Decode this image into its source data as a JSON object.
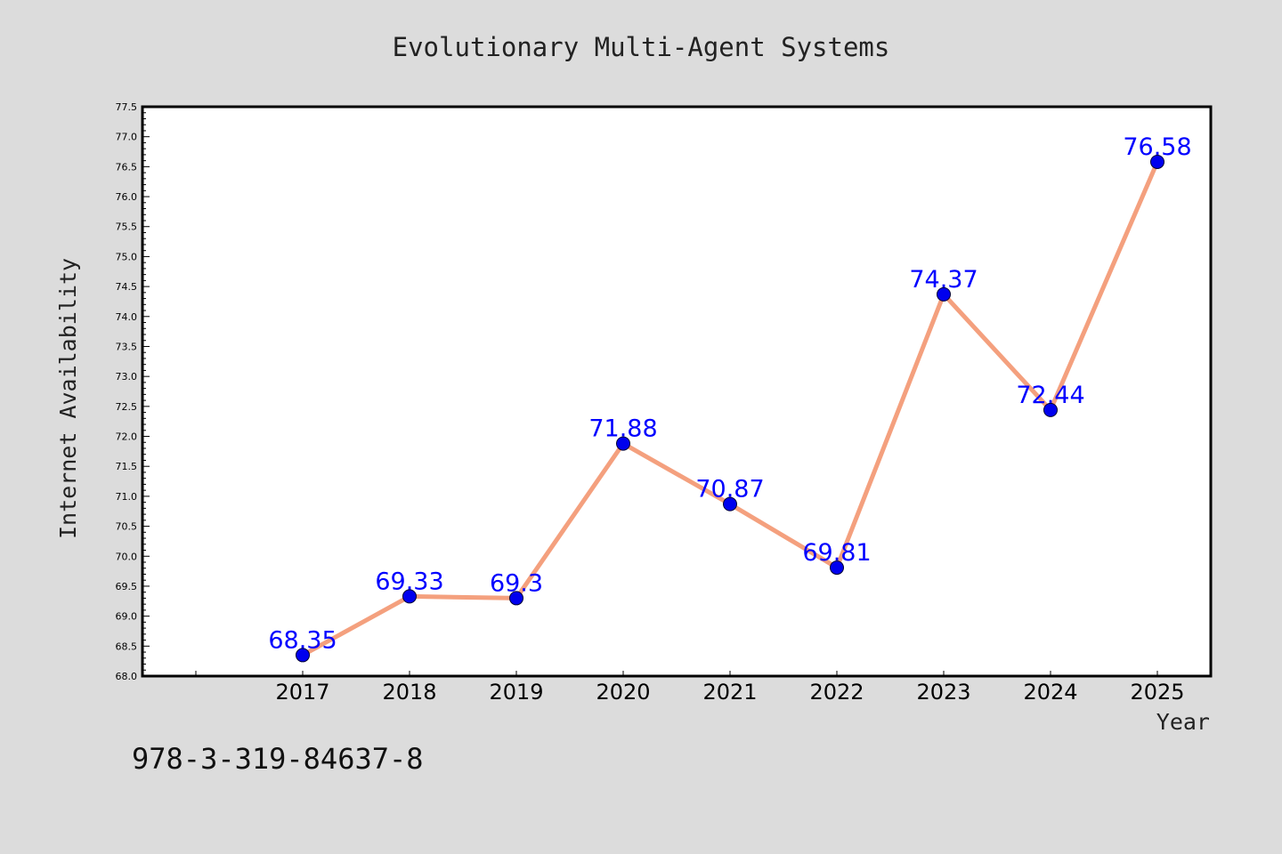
{
  "chart_data": {
    "type": "line",
    "title": "Evolutionary Multi-Agent Systems",
    "xlabel": "Year",
    "ylabel": "Internet Availability",
    "categories": [
      "2017",
      "2018",
      "2019",
      "2020",
      "2021",
      "2022",
      "2023",
      "2024",
      "2025"
    ],
    "series": [
      {
        "values": [
          68.35,
          69.33,
          69.3,
          71.88,
          70.87,
          69.81,
          74.37,
          72.44,
          76.58
        ],
        "data_labels": [
          "68.35",
          "69.33",
          "69.3",
          "71.88",
          "70.87",
          "69.81",
          "74.37",
          "72.44",
          "76.58"
        ]
      }
    ],
    "ylim": [
      68.0,
      77.5
    ],
    "yticks": [
      "68.0",
      "68.5",
      "69.0",
      "69.5",
      "70.0",
      "70.5",
      "71.0",
      "71.5",
      "72.0",
      "72.5",
      "73.0",
      "73.5",
      "74.0",
      "74.5",
      "75.0",
      "75.5",
      "76.0",
      "76.5",
      "77.0",
      "77.5"
    ],
    "grid": false,
    "legend": "none",
    "line_color": "#f4a07e",
    "marker_color": "#0000ee",
    "label_color": "#0000ff",
    "background_color": "#dcdcdc",
    "plot_background_color": "#ffffff"
  },
  "footnote": "978-3-319-84637-8"
}
